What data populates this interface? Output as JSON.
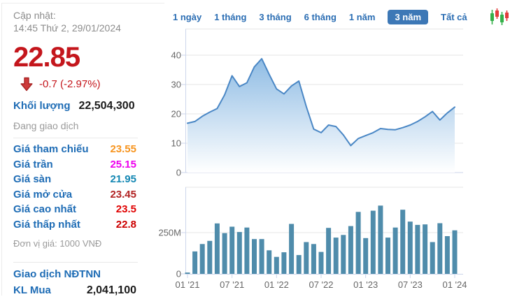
{
  "sidebar": {
    "updated_label": "Cập nhật:",
    "updated_time": "14:45 Thứ 2, 29/01/2024",
    "price": "22.85",
    "change": "-0.7 (-2.97%)",
    "price_color": "#c4161c",
    "volume_label": "Khối lượng",
    "volume_value": "22,504,300",
    "status": "Đang giao dịch",
    "rows": [
      {
        "label": "Giá tham chiếu",
        "value": "23.55",
        "color": "#f7941e"
      },
      {
        "label": "Giá trần",
        "value": "25.15",
        "color": "#ee00ee"
      },
      {
        "label": "Giá sàn",
        "value": "21.95",
        "color": "#1387b3"
      },
      {
        "label": "Giá mở cửa",
        "value": "23.45",
        "color": "#b22222"
      },
      {
        "label": "Giá cao nhất",
        "value": "23.5",
        "color": "#e00000"
      },
      {
        "label": "Giá thấp nhất",
        "value": "22.8",
        "color": "#cc0000"
      }
    ],
    "unit_note": "Đơn vị giá: 1000 VNĐ",
    "foreign_label": "Giao dịch NĐTNN",
    "buy_label": "KL Mua",
    "buy_value": "2,041,100"
  },
  "tabs": {
    "items": [
      {
        "label": "1 ngày",
        "active": false
      },
      {
        "label": "1 tháng",
        "active": false
      },
      {
        "label": "3 tháng",
        "active": false
      },
      {
        "label": "6 tháng",
        "active": false
      },
      {
        "label": "1 năm",
        "active": false
      },
      {
        "label": "3 năm",
        "active": true
      },
      {
        "label": "Tất cả",
        "active": false
      }
    ],
    "active_bg": "#3d78b6",
    "candle_icon_colors": {
      "up": "#35b04a",
      "down": "#e23c3c"
    }
  },
  "chart_data": [
    {
      "type": "area",
      "title": "price-history-3-years",
      "x_unit": "month",
      "x_start": "01/2021",
      "x_end": "01/2024",
      "values": [
        16.8,
        17.4,
        19.2,
        20.6,
        21.8,
        26.5,
        33,
        29.3,
        30.6,
        36,
        38.8,
        33.5,
        28.5,
        26.8,
        29.5,
        31.2,
        22.5,
        14.8,
        13.6,
        16.2,
        15.7,
        12.8,
        9.2,
        11.6,
        12.6,
        13.6,
        15,
        14.7,
        14.6,
        15.3,
        16.2,
        17.4,
        19,
        20.8,
        17.9,
        20.3,
        22.3
      ],
      "ylim": [
        0,
        48
      ],
      "yticks": [
        0,
        10,
        20,
        30,
        40
      ],
      "grid": true,
      "line_color": "#4a87c5",
      "fill_top": "#8fbce4",
      "fill_bottom": "#ffffff",
      "axis_color": "#ccd6eb",
      "grid_color": "#e6e6e6",
      "label_color": "#666666"
    },
    {
      "type": "bar",
      "title": "volume-3-years",
      "x_unit": "month",
      "values_millions": [
        8,
        136,
        181,
        200,
        306,
        247,
        286,
        254,
        281,
        211,
        211,
        143,
        103,
        131,
        303,
        114,
        193,
        181,
        133,
        279,
        220,
        236,
        290,
        376,
        217,
        383,
        414,
        220,
        281,
        389,
        317,
        297,
        300,
        193,
        307,
        229,
        264
      ],
      "ylim_millions": [
        0,
        525
      ],
      "yticks": [
        {
          "label": "0",
          "value": 0
        },
        {
          "label": "250M",
          "value": 250
        }
      ],
      "xticks": [
        {
          "label": "01 '21",
          "month": 0
        },
        {
          "label": "07 '21",
          "month": 6
        },
        {
          "label": "01 '22",
          "month": 12
        },
        {
          "label": "07 '22",
          "month": 18
        },
        {
          "label": "01 '23",
          "month": 24
        },
        {
          "label": "07 '23",
          "month": 30
        },
        {
          "label": "01 '24",
          "month": 36
        }
      ],
      "bar_color": "#4f8cab",
      "axis_color": "#ccd6eb",
      "grid_color": "#e6e6e6",
      "label_color": "#666666"
    }
  ]
}
